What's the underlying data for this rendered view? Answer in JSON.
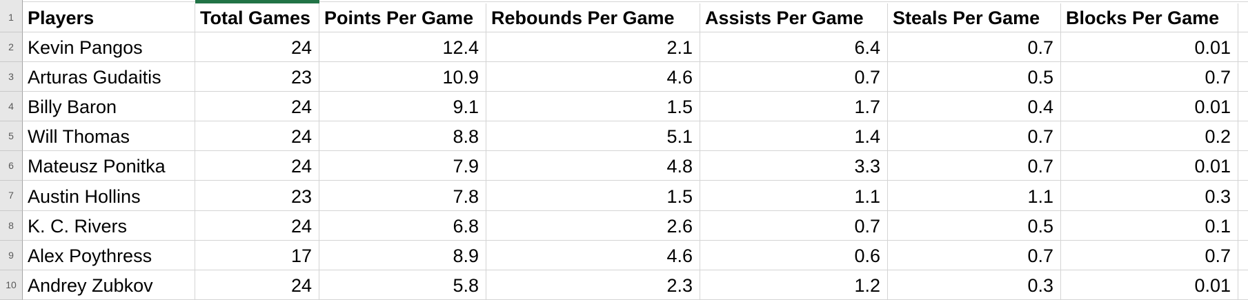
{
  "colors": {
    "selection_green": "#217346",
    "gridline": "#d4d4d4",
    "gutter_background": "#e7e7e7",
    "gutter_border": "#a3a3a3",
    "row_number_text": "#595959",
    "cell_text": "#000000"
  },
  "row_numbers": [
    "1",
    "2",
    "3",
    "4",
    "5",
    "6",
    "7",
    "8",
    "9",
    "10"
  ],
  "table": {
    "columns": [
      "Players",
      "Total Games",
      "Points Per Game",
      "Rebounds Per Game",
      "Assists Per Game",
      "Steals Per Game",
      "Blocks Per Game"
    ],
    "rows": [
      [
        "Kevin Pangos",
        "24",
        "12.4",
        "2.1",
        "6.4",
        "0.7",
        "0.01"
      ],
      [
        "Arturas Gudaitis",
        "23",
        "10.9",
        "4.6",
        "0.7",
        "0.5",
        "0.7"
      ],
      [
        "Billy Baron",
        "24",
        "9.1",
        "1.5",
        "1.7",
        "0.4",
        "0.01"
      ],
      [
        "Will Thomas",
        "24",
        "8.8",
        "5.1",
        "1.4",
        "0.7",
        "0.2"
      ],
      [
        "Mateusz Ponitka",
        "24",
        "7.9",
        "4.8",
        "3.3",
        "0.7",
        "0.01"
      ],
      [
        "Austin Hollins",
        "23",
        "7.8",
        "1.5",
        "1.1",
        "1.1",
        "0.3"
      ],
      [
        "K. C. Rivers",
        "24",
        "6.8",
        "2.6",
        "0.7",
        "0.5",
        "0.1"
      ],
      [
        "Alex Poythress",
        "17",
        "8.9",
        "4.6",
        "0.6",
        "0.7",
        "0.7"
      ],
      [
        "Andrey Zubkov",
        "24",
        "5.8",
        "2.3",
        "1.2",
        "0.3",
        "0.01"
      ]
    ]
  }
}
